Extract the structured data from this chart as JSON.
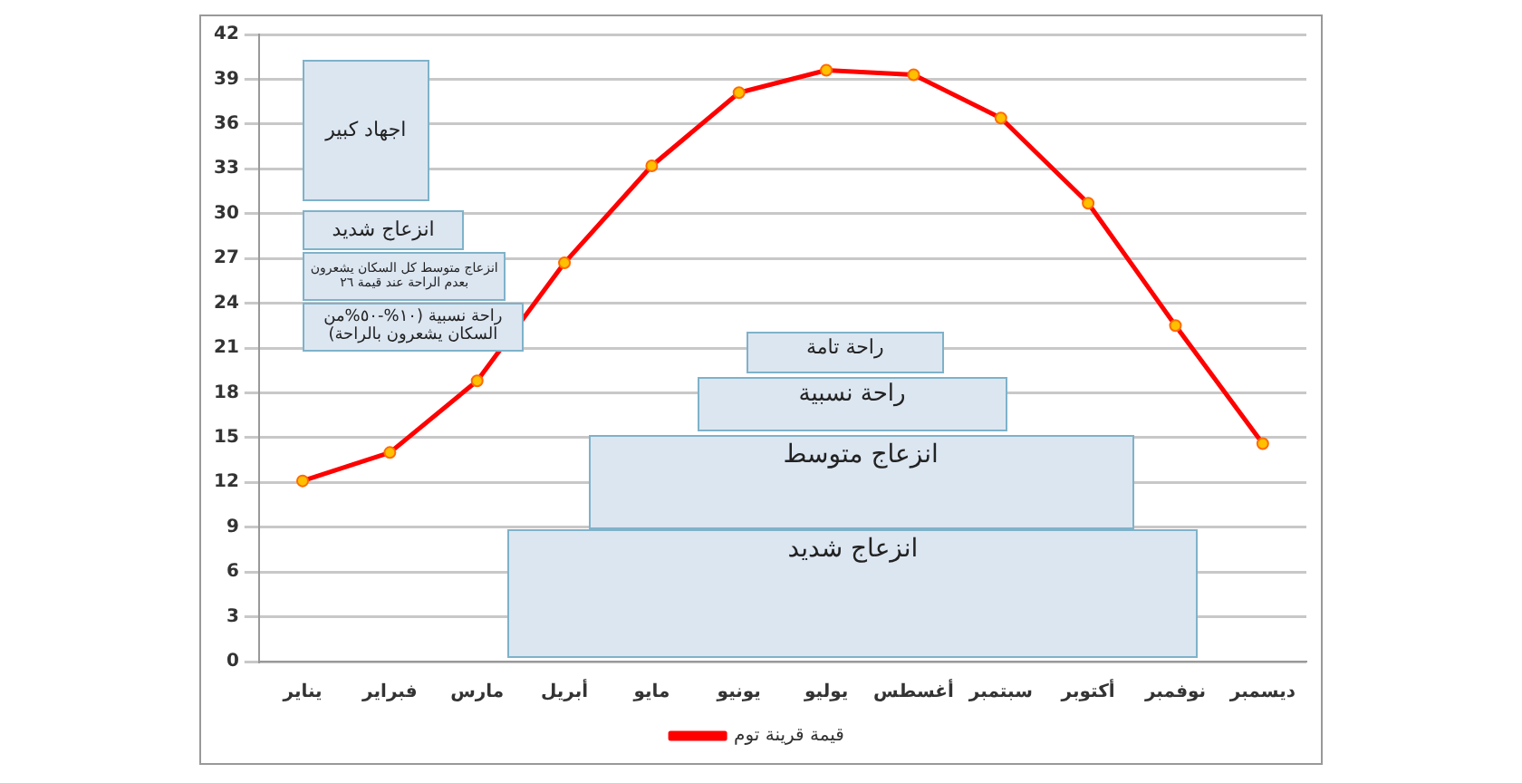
{
  "chart_data": {
    "type": "line",
    "categories": [
      "يناير",
      "فبراير",
      "مارس",
      "أبريل",
      "مايو",
      "يونيو",
      "يوليو",
      "أغسطس",
      "سبتمبر",
      "أكتوبر",
      "نوفمبر",
      "ديسمبر"
    ],
    "series": [
      {
        "name": "قيمة قرينة توم",
        "color": "#ff0000",
        "values": [
          12.1,
          14.0,
          18.8,
          26.7,
          33.2,
          38.1,
          39.6,
          39.3,
          36.4,
          30.7,
          22.5,
          14.6
        ]
      }
    ],
    "ylim": [
      0,
      42
    ],
    "yticks": [
      0,
      3,
      6,
      9,
      12,
      15,
      18,
      21,
      24,
      27,
      30,
      33,
      36,
      39,
      42
    ],
    "grid": "y",
    "legend": "bottom",
    "marker": "circle",
    "annotations": [
      "اجهاد كبير",
      "انزعاج شديد",
      "انزعاج متوسط كل السكان يشعرون بعدم الراحة عند قيمة ٢٦",
      "راحة نسبية (١٠%-٥٠%من السكان يشعرون بالراحة)",
      "راحة تامة",
      "راحة نسبية",
      "انزعاج متوسط",
      "انزعاج شديد"
    ]
  }
}
